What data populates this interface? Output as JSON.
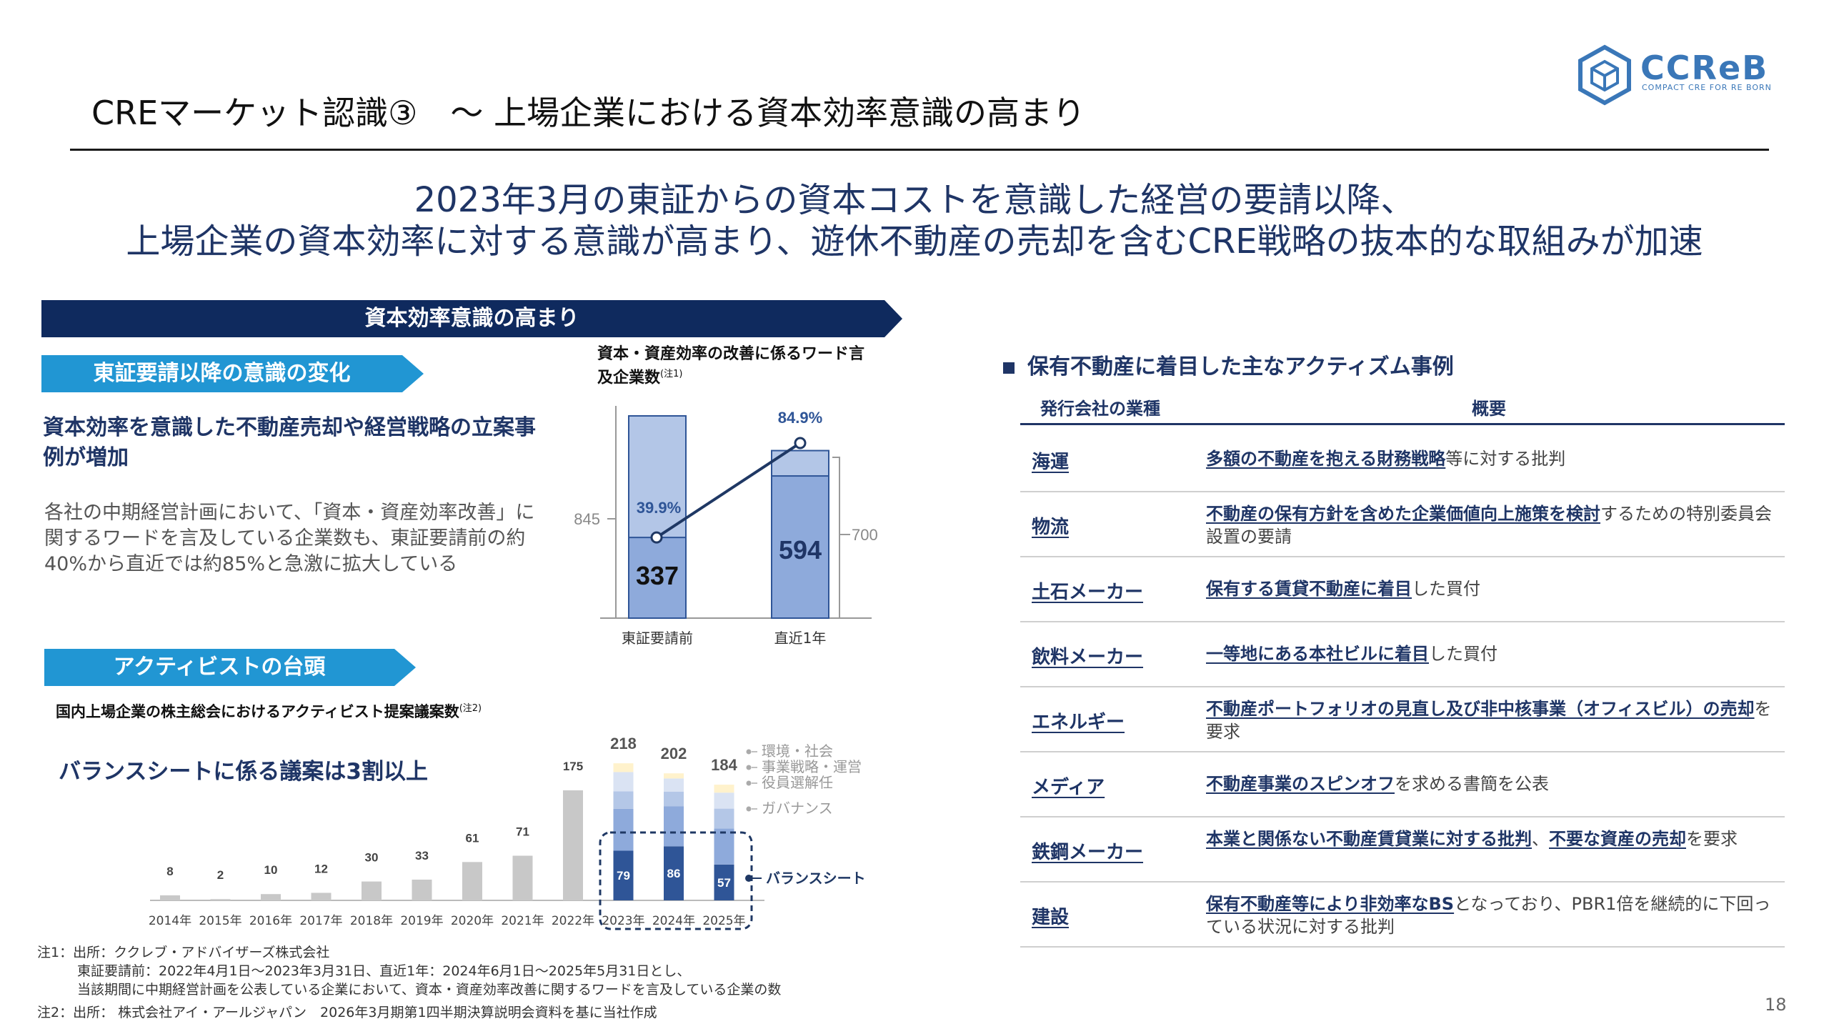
{
  "header": {
    "title": "CREマーケット認識③　～ 上場企業における資本効率意識の高まり",
    "logo_text": "CCReB",
    "logo_sub": "COMPACT CRE FOR RE BORN"
  },
  "headline": {
    "line1": "2023年3月の東証からの資本コストを意識した経営の要請以降、",
    "line2": "上場企業の資本効率に対する意識が高まり、遊休不動産の売却を含むCRE戦略の抜本的な取組みが加速"
  },
  "left": {
    "banner": "資本効率意識の高まり",
    "section1": {
      "tag": "東証要請以降の意識の変化",
      "lead": "資本効率を意識した不動産売却や経営戦略の立案事例が増加",
      "body": "各社の中期経営計画において、「資本・資産効率改善」に関するワードを言及している企業数も、東証要請前の約40%から直近では約85%と急激に拡大している"
    },
    "section2": {
      "tag": "アクティビストの台頭",
      "emphasis": "バランスシートに係る議案は3割以上"
    }
  },
  "chart_data": [
    {
      "type": "bar",
      "title": "資本・資産効率の改善に係るワード言及企業数",
      "title_note": "(注1)",
      "categories": [
        "東証要請前",
        "直近1年"
      ],
      "totals": [
        845,
        700
      ],
      "values": [
        337,
        594
      ],
      "percent": [
        "39.9%",
        "84.9%"
      ],
      "percent_values": [
        39.9,
        84.9
      ],
      "total_labels": [
        "845",
        "700"
      ],
      "value_labels": [
        "337",
        "594"
      ],
      "colors": {
        "total": "#b3c6e7",
        "value": "#8eaadb",
        "border": "#2f5597",
        "line": "#1f3864"
      }
    },
    {
      "type": "bar",
      "title": "国内上場企業の株主総会におけるアクティビスト提案議案数",
      "title_note": "(注2)",
      "categories": [
        "2014年",
        "2015年",
        "2016年",
        "2017年",
        "2018年",
        "2019年",
        "2020年",
        "2021年",
        "2022年",
        "2023年",
        "2024年",
        "2025年"
      ],
      "totals": [
        8,
        2,
        10,
        12,
        30,
        33,
        61,
        71,
        175,
        218,
        202,
        184
      ],
      "total_labels": [
        "8",
        "2",
        "10",
        "12",
        "30",
        "33",
        "61",
        "71",
        "175",
        "218",
        "202",
        "184"
      ],
      "balance_sheet": [
        null,
        null,
        null,
        null,
        null,
        null,
        null,
        null,
        null,
        79,
        86,
        57
      ],
      "balance_sheet_labels": [
        "79",
        "86",
        "57"
      ],
      "legend": [
        "環境・社会",
        "事業戦略・運営",
        "役員選解任",
        "ガバナンス",
        "バランスシート"
      ],
      "colors": {
        "total": "#c8c8c8",
        "バランスシート": "#2f5597",
        "ガバナンス": "#8eaadb",
        "役員選解任": "#b4c7e7",
        "事業戦略・運営": "#dae3f3",
        "環境・社会": "#fff2cc"
      }
    }
  ],
  "right": {
    "heading": "保有不動産に着目した主なアクティズム事例",
    "col_industry": "発行会社の業種",
    "col_summary": "概要",
    "rows": [
      {
        "industry": "海運",
        "hl": "多額の不動産を抱える財務戦略",
        "rest": "等に対する批判"
      },
      {
        "industry": "物流",
        "hl": "不動産の保有方針を含めた企業価値向上施策を検討",
        "rest": "するための特別委員会設置の要請"
      },
      {
        "industry": "土石メーカー",
        "hl": "保有する賃貸不動産に着目",
        "rest": "した買付"
      },
      {
        "industry": "飲料メーカー",
        "hl": "一等地にある本社ビルに着目",
        "rest": "した買付"
      },
      {
        "industry": "エネルギー",
        "hl": "不動産ポートフォリオの見直し及び非中核事業（オフィスビル）の売却",
        "rest": "を要求"
      },
      {
        "industry": "メディア",
        "hl": "不動産事業のスピンオフ",
        "rest": "を求める書簡を公表"
      },
      {
        "industry": "鉄鋼メーカー",
        "hl": "本業と関係ない不動産賃貸業に対する批判",
        "mid": "、",
        "hl2": "不要な資産の売却",
        "rest": "を要求"
      },
      {
        "industry": "建設",
        "hl": "保有不動産等により非効率なBS",
        "rest": "となっており、PBR1倍を継続的に下回っている状況に対する批判"
      }
    ]
  },
  "notes": {
    "n1_l1": "注1：出所：ククレブ・アドバイザーズ株式会社",
    "n1_l2": "東証要請前：2022年4月1日～2023年3月31日、直近1年：2024年6月1日～2025年5月31日とし、",
    "n1_l3": "当該期間に中期経営計画を公表している企業において、資本・資産効率改善に関するワードを言及している企業の数",
    "n2": "注2：出所： 株式会社アイ・アールジャパン　2026年3月期第1四半期決算説明会資料を基に当社作成"
  },
  "page_number": "18"
}
